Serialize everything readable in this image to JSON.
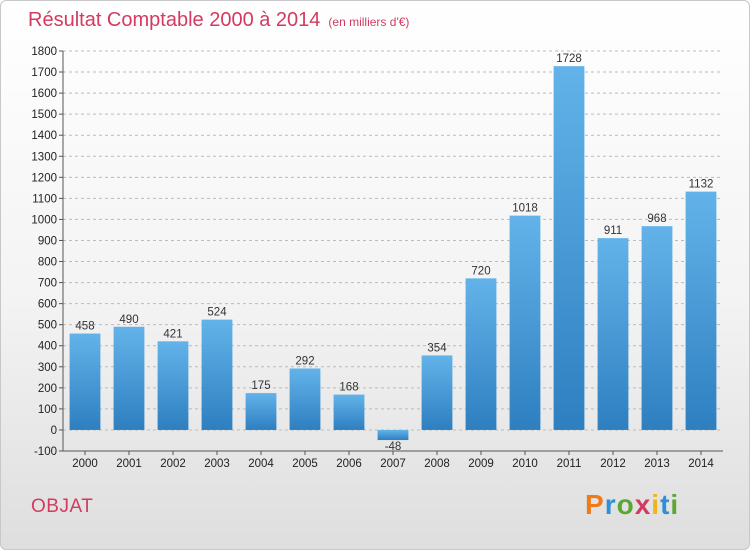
{
  "header": {
    "title": "Résultat Comptable 2000 à 2014",
    "unit": "(en milliers d'€)"
  },
  "commune": "OBJAT",
  "logo": {
    "letters": [
      "P",
      "r",
      "o",
      "x",
      "i",
      "t",
      "i"
    ],
    "colors": [
      "#f07a1a",
      "#2e8fd6",
      "#5aa832",
      "#d43a5f",
      "#f0b41a",
      "#2e8fd6",
      "#5aa832"
    ]
  },
  "colors": {
    "bar_top": "#63b3ea",
    "bar_bottom": "#2e7fc0",
    "title": "#d43a5f",
    "grid": "#bbbbbb"
  },
  "chart_data": {
    "type": "bar",
    "title": "Résultat Comptable 2000 à 2014",
    "subtitle": "(en milliers d'€)",
    "categories": [
      "2000",
      "2001",
      "2002",
      "2003",
      "2004",
      "2005",
      "2006",
      "2007",
      "2008",
      "2009",
      "2010",
      "2011",
      "2012",
      "2013",
      "2014"
    ],
    "values": [
      458,
      490,
      421,
      524,
      175,
      292,
      168,
      -48,
      354,
      720,
      1018,
      1728,
      911,
      968,
      1132
    ],
    "ylim": [
      -100,
      1800
    ],
    "yticks": [
      -100,
      0,
      100,
      200,
      300,
      400,
      500,
      600,
      700,
      800,
      900,
      1000,
      1100,
      1200,
      1300,
      1400,
      1500,
      1600,
      1700,
      1800
    ],
    "grid": "horizontal dashed",
    "xlabel": "",
    "ylabel": ""
  }
}
